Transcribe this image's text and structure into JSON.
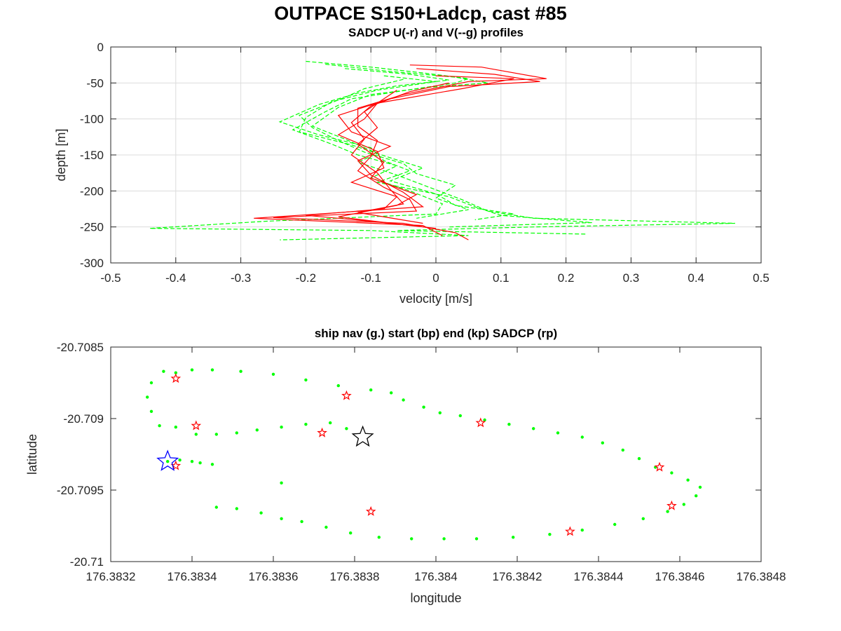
{
  "figure": {
    "title": "OUTPACE S150+Ladcp, cast #85"
  },
  "chart_data": [
    {
      "type": "line",
      "title": "SADCP U(-r) and V(--g) profiles",
      "xlabel": "velocity [m/s]",
      "ylabel": "depth [m]",
      "xlim": [
        -0.5,
        0.5
      ],
      "ylim": [
        -300,
        0
      ],
      "xticks": [
        -0.5,
        -0.4,
        -0.3,
        -0.2,
        -0.1,
        0,
        0.1,
        0.2,
        0.3,
        0.4,
        0.5
      ],
      "yticks": [
        0,
        -50,
        -100,
        -150,
        -200,
        -250,
        -300
      ],
      "xtick_labels": [
        "-0.5",
        "-0.4",
        "-0.3",
        "-0.2",
        "-0.1",
        "0",
        "0.1",
        "0.2",
        "0.3",
        "0.4",
        "0.5"
      ],
      "ytick_labels": [
        "0",
        "-50",
        "-100",
        "-150",
        "-200",
        "-250",
        "-300"
      ],
      "grid": true,
      "colors": {
        "U": "#ff0000",
        "V": "#00ff00"
      },
      "series": [
        {
          "component": "U",
          "style": "solid",
          "color": "#ff0000",
          "points": [
            [
              -0.04,
              -25
            ],
            [
              0.07,
              -28
            ],
            [
              0.17,
              -44
            ],
            [
              0.05,
              -48
            ],
            [
              -0.05,
              -66
            ],
            [
              -0.12,
              -85
            ],
            [
              -0.12,
              -110
            ],
            [
              -0.09,
              -130
            ],
            [
              -0.1,
              -152
            ],
            [
              -0.12,
              -172
            ],
            [
              -0.08,
              -195
            ],
            [
              -0.04,
              -212
            ],
            [
              -0.03,
              -228
            ],
            [
              -0.25,
              -237
            ],
            [
              -0.05,
              -245
            ],
            [
              0.03,
              -258
            ],
            [
              0.05,
              -268
            ]
          ]
        },
        {
          "component": "U",
          "style": "solid",
          "color": "#ff0000",
          "points": [
            [
              -0.03,
              -30
            ],
            [
              0.09,
              -38
            ],
            [
              0.16,
              -48
            ],
            [
              0.02,
              -55
            ],
            [
              -0.07,
              -72
            ],
            [
              -0.15,
              -95
            ],
            [
              -0.13,
              -118
            ],
            [
              -0.07,
              -138
            ],
            [
              -0.12,
              -158
            ],
            [
              -0.1,
              -178
            ],
            [
              -0.05,
              -202
            ],
            [
              -0.02,
              -222
            ],
            [
              -0.18,
              -232
            ],
            [
              -0.28,
              -238
            ],
            [
              -0.02,
              -248
            ],
            [
              0.01,
              -262
            ]
          ]
        },
        {
          "component": "U",
          "style": "solid",
          "color": "#ff0000",
          "points": [
            [
              0.0,
              -40
            ],
            [
              0.12,
              -44
            ],
            [
              0.04,
              -58
            ],
            [
              -0.09,
              -78
            ],
            [
              -0.11,
              -100
            ],
            [
              -0.15,
              -122
            ],
            [
              -0.09,
              -145
            ],
            [
              -0.08,
              -168
            ],
            [
              -0.13,
              -188
            ],
            [
              -0.06,
              -208
            ],
            [
              -0.08,
              -225
            ],
            [
              -0.2,
              -234
            ],
            [
              -0.1,
              -242
            ],
            [
              0.0,
              -252
            ]
          ]
        },
        {
          "component": "U",
          "style": "solid",
          "color": "#ff0000",
          "points": [
            [
              0.02,
              -50
            ],
            [
              -0.04,
              -62
            ],
            [
              -0.1,
              -82
            ],
            [
              -0.13,
              -105
            ],
            [
              -0.11,
              -128
            ],
            [
              -0.13,
              -150
            ],
            [
              -0.09,
              -175
            ],
            [
              -0.07,
              -198
            ],
            [
              -0.05,
              -218
            ],
            [
              -0.12,
              -230
            ],
            [
              -0.02,
              -245
            ]
          ]
        },
        {
          "component": "U",
          "style": "solid",
          "color": "#ff0000",
          "points": [
            [
              -0.06,
              -60
            ],
            [
              -0.11,
              -90
            ],
            [
              -0.09,
              -112
            ],
            [
              -0.12,
              -135
            ],
            [
              -0.08,
              -160
            ],
            [
              -0.1,
              -182
            ],
            [
              -0.03,
              -205
            ],
            [
              -0.06,
              -220
            ],
            [
              -0.15,
              -236
            ],
            [
              -0.04,
              -248
            ]
          ]
        },
        {
          "component": "V",
          "style": "dashed",
          "color": "#00ff00",
          "points": [
            [
              -0.2,
              -20
            ],
            [
              -0.1,
              -28
            ],
            [
              -0.02,
              -36
            ],
            [
              0.05,
              -44
            ],
            [
              0.03,
              -50
            ],
            [
              -0.03,
              -58
            ],
            [
              -0.13,
              -72
            ],
            [
              -0.17,
              -90
            ],
            [
              -0.22,
              -115
            ],
            [
              -0.16,
              -135
            ],
            [
              -0.12,
              -150
            ],
            [
              -0.06,
              -165
            ],
            [
              -0.1,
              -182
            ],
            [
              -0.04,
              -200
            ],
            [
              0.01,
              -218
            ],
            [
              0.0,
              -232
            ],
            [
              -0.26,
              -242
            ],
            [
              -0.44,
              -252
            ],
            [
              -0.1,
              -255
            ],
            [
              0.05,
              -262
            ],
            [
              -0.24,
              -268
            ]
          ]
        },
        {
          "component": "V",
          "style": "dashed",
          "color": "#00ff00",
          "points": [
            [
              -0.17,
              -24
            ],
            [
              -0.07,
              -34
            ],
            [
              0.03,
              -42
            ],
            [
              0.08,
              -50
            ],
            [
              -0.01,
              -56
            ],
            [
              -0.1,
              -66
            ],
            [
              -0.15,
              -84
            ],
            [
              -0.19,
              -110
            ],
            [
              -0.14,
              -128
            ],
            [
              -0.09,
              -148
            ],
            [
              -0.12,
              -160
            ],
            [
              -0.06,
              -178
            ],
            [
              -0.01,
              -195
            ],
            [
              0.04,
              -212
            ],
            [
              0.08,
              -228
            ],
            [
              0.15,
              -238
            ],
            [
              0.46,
              -245
            ],
            [
              0.15,
              -250
            ],
            [
              -0.06,
              -255
            ],
            [
              0.23,
              -260
            ]
          ]
        },
        {
          "component": "V",
          "style": "dashed",
          "color": "#00ff00",
          "points": [
            [
              -0.14,
              -30
            ],
            [
              -0.04,
              -38
            ],
            [
              0.02,
              -46
            ],
            [
              -0.06,
              -54
            ],
            [
              -0.12,
              -64
            ],
            [
              -0.18,
              -80
            ],
            [
              -0.24,
              -104
            ],
            [
              -0.18,
              -122
            ],
            [
              -0.1,
              -140
            ],
            [
              -0.08,
              -158
            ],
            [
              -0.04,
              -172
            ],
            [
              -0.09,
              -188
            ],
            [
              0.02,
              -208
            ],
            [
              0.06,
              -222
            ],
            [
              0.1,
              -234
            ],
            [
              0.24,
              -244
            ],
            [
              0.02,
              -250
            ]
          ]
        },
        {
          "component": "V",
          "style": "dashed",
          "color": "#00ff00",
          "points": [
            [
              -0.08,
              -40
            ],
            [
              0.0,
              -48
            ],
            [
              -0.09,
              -60
            ],
            [
              -0.16,
              -76
            ],
            [
              -0.2,
              -98
            ],
            [
              -0.21,
              -118
            ],
            [
              -0.13,
              -136
            ],
            [
              -0.07,
              -154
            ],
            [
              -0.02,
              -168
            ],
            [
              -0.07,
              -186
            ],
            [
              0.0,
              -204
            ],
            [
              0.03,
              -220
            ],
            [
              0.12,
              -232
            ],
            [
              0.06,
              -240
            ]
          ]
        },
        {
          "component": "V",
          "style": "dashed",
          "color": "#00ff00",
          "points": [
            [
              -0.05,
              -45
            ],
            [
              -0.11,
              -58
            ],
            [
              -0.14,
              -70
            ],
            [
              -0.21,
              -95
            ],
            [
              -0.19,
              -112
            ],
            [
              -0.15,
              -130
            ],
            [
              -0.11,
              -146
            ],
            [
              -0.05,
              -162
            ],
            [
              -0.03,
              -176
            ],
            [
              0.03,
              -192
            ],
            [
              0.0,
              -210
            ],
            [
              0.05,
              -226
            ],
            [
              -0.03,
              -238
            ]
          ]
        }
      ]
    },
    {
      "type": "scatter",
      "title": "ship nav (g.) start (bp) end (kp) SADCP (rp)",
      "xlabel": "longitude",
      "ylabel": "latitude",
      "xlim": [
        176.3832,
        176.3848
      ],
      "ylim": [
        -20.71,
        -20.7085
      ],
      "xticks": [
        176.3832,
        176.3834,
        176.3836,
        176.3838,
        176.384,
        176.3842,
        176.3844,
        176.3846,
        176.3848
      ],
      "xtick_labels": [
        "176.3832",
        "176.3834",
        "176.3836",
        "176.3838",
        "176.384",
        "176.3842",
        "176.3844",
        "176.3846",
        "176.3848"
      ],
      "yticks": [
        -20.7085,
        -20.709,
        -20.7095,
        -20.71
      ],
      "ytick_labels": [
        "-20.7085",
        "-20.709",
        "-20.7095",
        "-20.71"
      ],
      "grid": false,
      "colors": {
        "nav": "#00ff00",
        "start": "#0000ff",
        "end": "#000000",
        "sadcp": "#ff0000"
      },
      "nav_track": [
        [
          176.38333,
          -20.70867
        ],
        [
          176.3833,
          -20.70875
        ],
        [
          176.38329,
          -20.70885
        ],
        [
          176.3833,
          -20.70895
        ],
        [
          176.38332,
          -20.70905
        ],
        [
          176.38336,
          -20.70868
        ],
        [
          176.3834,
          -20.70866
        ],
        [
          176.38345,
          -20.70866
        ],
        [
          176.38352,
          -20.70867
        ],
        [
          176.3836,
          -20.70869
        ],
        [
          176.38368,
          -20.70873
        ],
        [
          176.38376,
          -20.70877
        ],
        [
          176.38384,
          -20.7088
        ],
        [
          176.38389,
          -20.70882
        ],
        [
          176.38392,
          -20.70887
        ],
        [
          176.38397,
          -20.70892
        ],
        [
          176.38401,
          -20.70896
        ],
        [
          176.38406,
          -20.70898
        ],
        [
          176.38412,
          -20.70901
        ],
        [
          176.38418,
          -20.70904
        ],
        [
          176.38424,
          -20.70907
        ],
        [
          176.3843,
          -20.7091
        ],
        [
          176.38436,
          -20.70913
        ],
        [
          176.38441,
          -20.70917
        ],
        [
          176.38446,
          -20.70922
        ],
        [
          176.3845,
          -20.70928
        ],
        [
          176.38454,
          -20.70934
        ],
        [
          176.38458,
          -20.70938
        ],
        [
          176.38462,
          -20.70943
        ],
        [
          176.38465,
          -20.70948
        ],
        [
          176.38464,
          -20.70954
        ],
        [
          176.38461,
          -20.7096
        ],
        [
          176.38457,
          -20.70965
        ],
        [
          176.38451,
          -20.7097
        ],
        [
          176.38444,
          -20.70974
        ],
        [
          176.38436,
          -20.70978
        ],
        [
          176.38428,
          -20.70981
        ],
        [
          176.38419,
          -20.70983
        ],
        [
          176.3841,
          -20.70984
        ],
        [
          176.38402,
          -20.70984
        ],
        [
          176.38394,
          -20.70984
        ],
        [
          176.38386,
          -20.70983
        ],
        [
          176.38379,
          -20.7098
        ],
        [
          176.38373,
          -20.70976
        ],
        [
          176.38367,
          -20.70972
        ],
        [
          176.38362,
          -20.7097
        ],
        [
          176.38357,
          -20.70966
        ],
        [
          176.38351,
          -20.70963
        ],
        [
          176.38346,
          -20.70962
        ],
        [
          176.38334,
          -20.7093
        ],
        [
          176.38337,
          -20.70929
        ],
        [
          176.3834,
          -20.7093
        ],
        [
          176.38342,
          -20.70931
        ],
        [
          176.38345,
          -20.70932
        ],
        [
          176.38362,
          -20.70945
        ],
        [
          176.38336,
          -20.70906
        ],
        [
          176.38341,
          -20.70911
        ],
        [
          176.38346,
          -20.70911
        ],
        [
          176.38351,
          -20.7091
        ],
        [
          176.38356,
          -20.70908
        ],
        [
          176.38362,
          -20.70906
        ],
        [
          176.38368,
          -20.70904
        ],
        [
          176.38374,
          -20.70903
        ],
        [
          176.38378,
          -20.70907
        ]
      ],
      "start": [
        176.38334,
        -20.7093
      ],
      "end": [
        176.38382,
        -20.70913
      ],
      "sadcp": [
        [
          176.38336,
          -20.70872
        ],
        [
          176.38341,
          -20.70905
        ],
        [
          176.38336,
          -20.70933
        ],
        [
          176.38372,
          -20.7091
        ],
        [
          176.38378,
          -20.70884
        ],
        [
          176.38384,
          -20.70965
        ],
        [
          176.38411,
          -20.70903
        ],
        [
          176.38433,
          -20.70979
        ],
        [
          176.38455,
          -20.70934
        ],
        [
          176.38458,
          -20.70961
        ]
      ]
    }
  ]
}
